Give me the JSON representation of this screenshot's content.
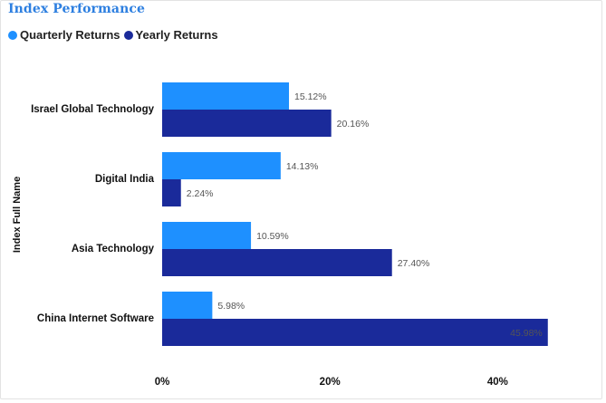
{
  "chart_data": {
    "type": "bar",
    "orientation": "horizontal",
    "title": "Index Performance",
    "ylabel": "Index Full Name",
    "xlabel": "",
    "categories": [
      "Israel Global Technology",
      "Digital India",
      "Asia Technology",
      "China Internet Software"
    ],
    "series": [
      {
        "name": "Quarterly Returns",
        "color": "#1e90ff",
        "values": [
          15.12,
          14.13,
          10.59,
          5.98
        ],
        "labels": [
          "15.12%",
          "14.13%",
          "10.59%",
          "5.98%"
        ]
      },
      {
        "name": "Yearly Returns",
        "color": "#1a2a9a",
        "values": [
          20.16,
          2.24,
          27.4,
          45.98
        ],
        "labels": [
          "20.16%",
          "2.24%",
          "27.40%",
          "45.98%"
        ]
      }
    ],
    "xlim": [
      0,
      46
    ],
    "xticks": [
      0,
      20,
      40
    ],
    "xtick_labels": [
      "0%",
      "20%",
      "40%"
    ],
    "legend_position": "top-left",
    "grid": false
  }
}
